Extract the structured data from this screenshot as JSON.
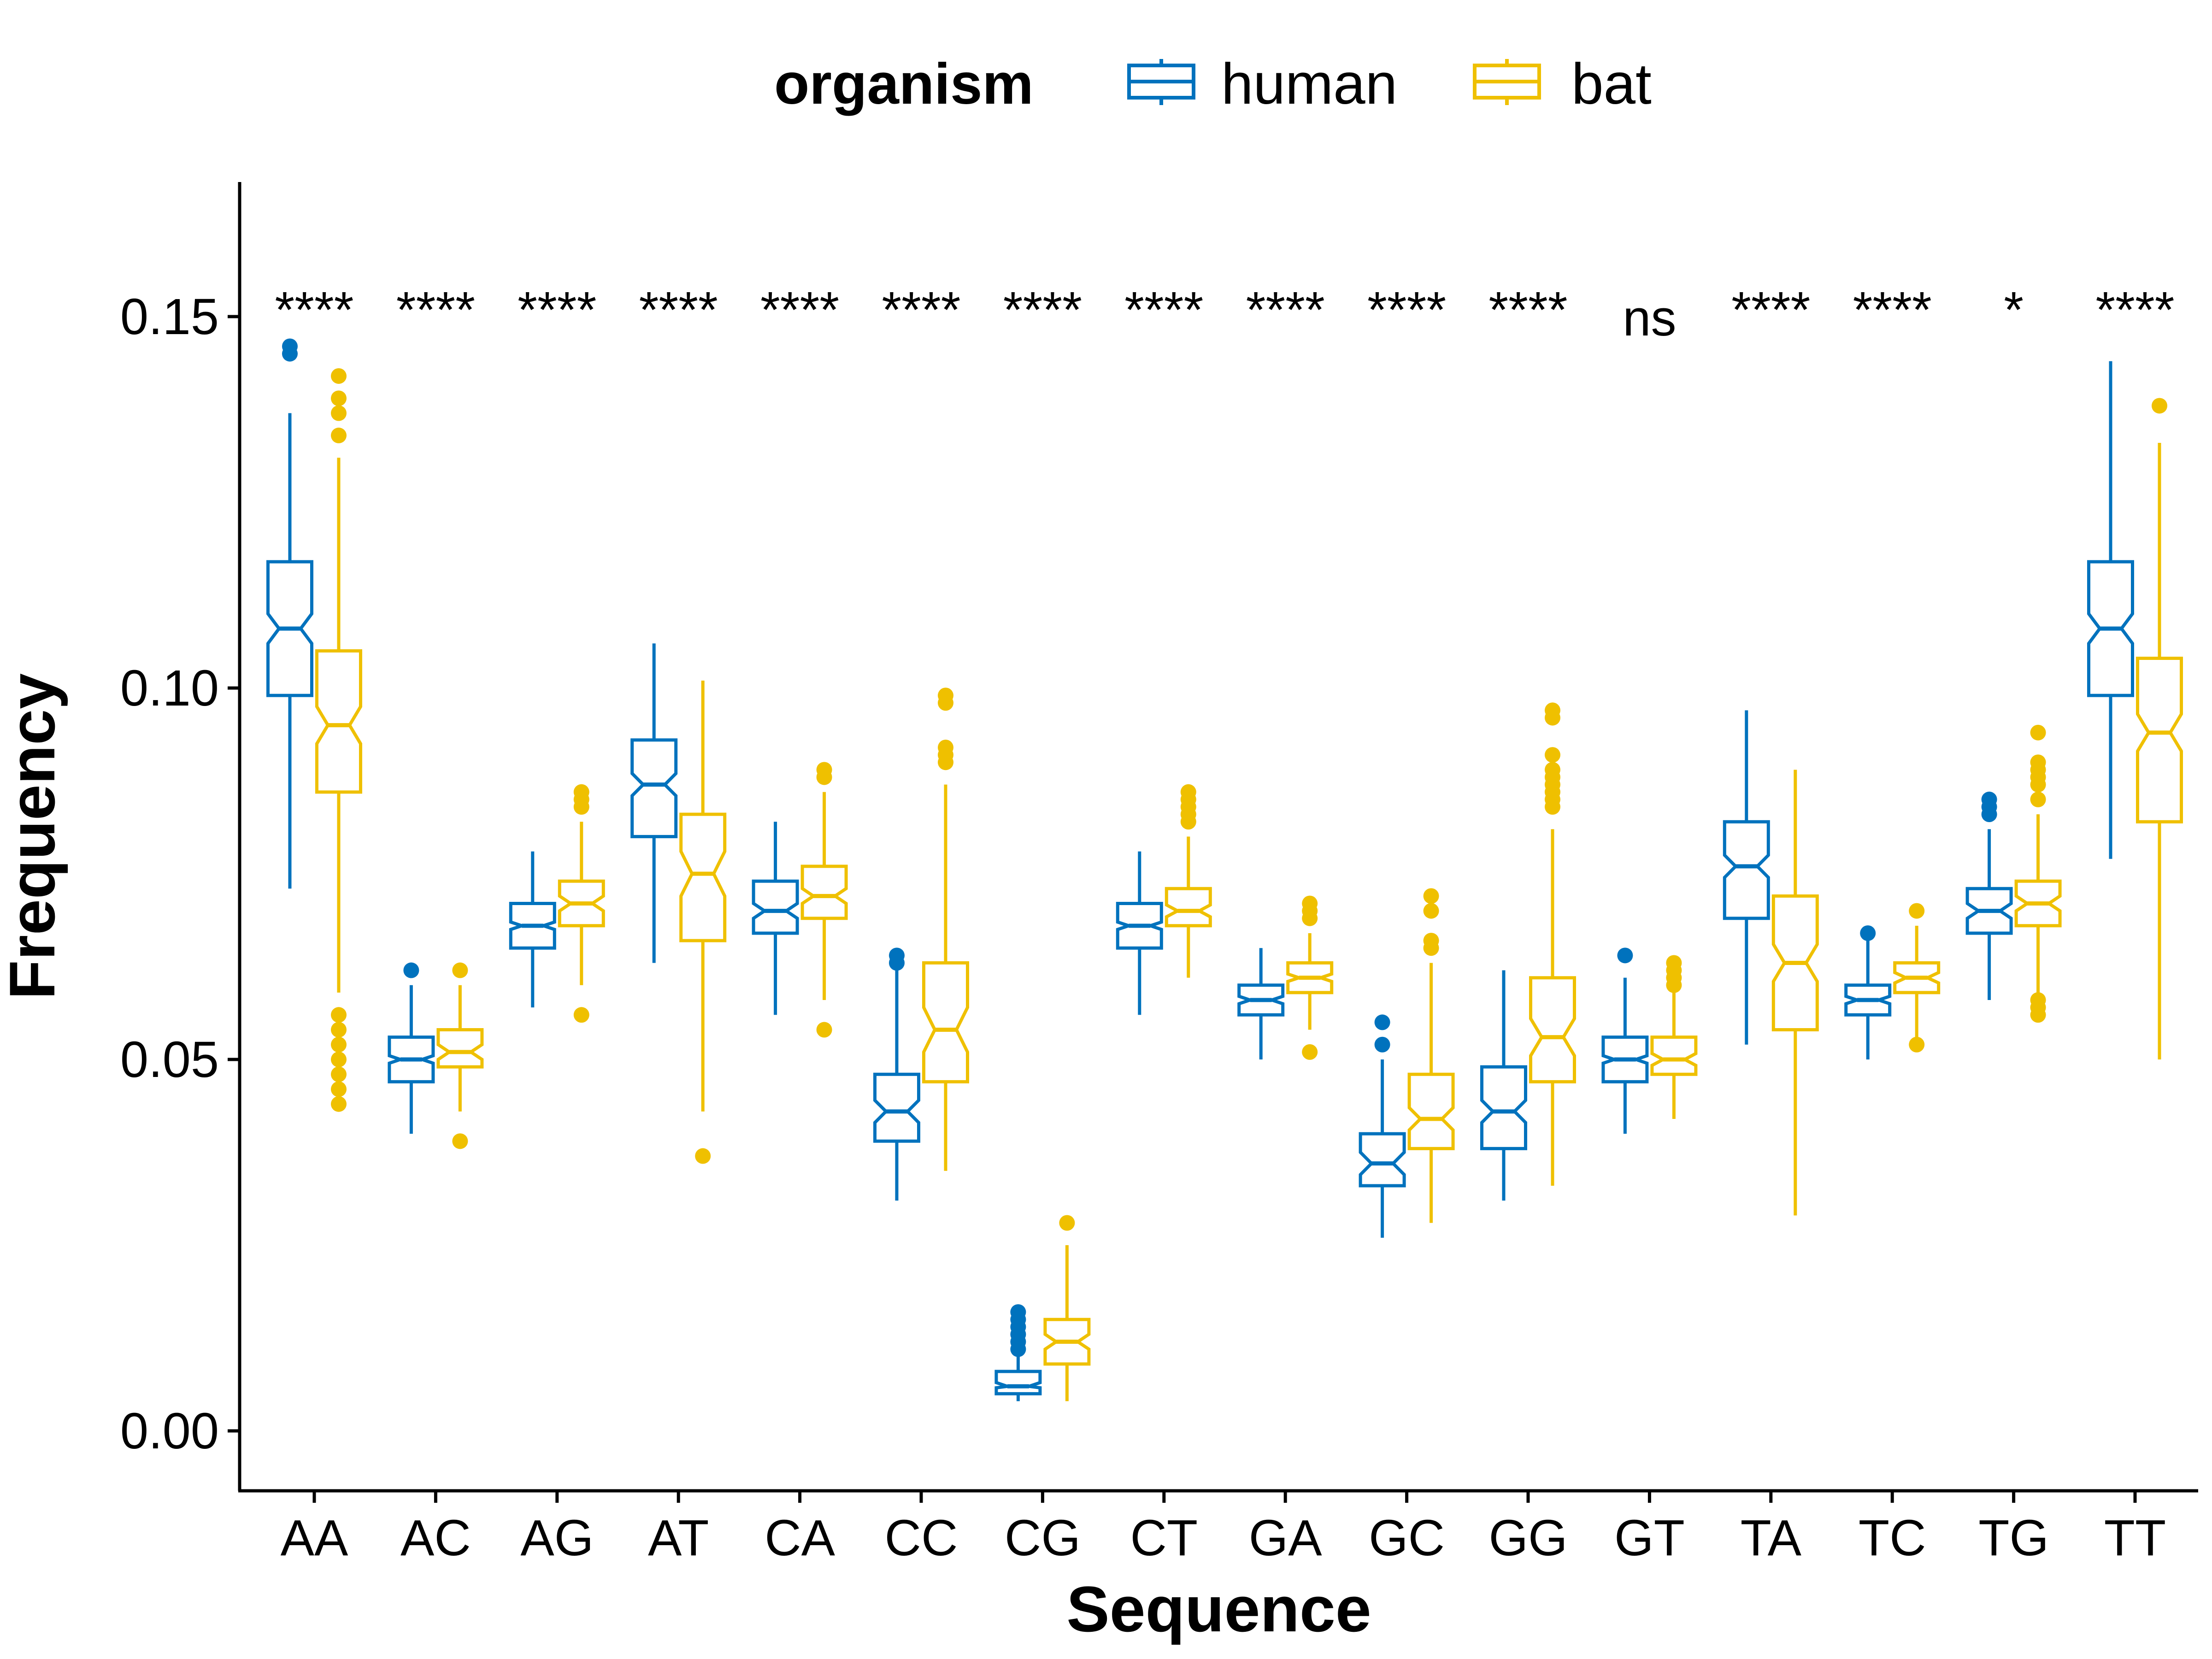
{
  "chart_data": {
    "type": "boxplot",
    "xlabel": "Sequence",
    "ylabel": "Frequency",
    "ylim": [
      -0.006,
      0.168
    ],
    "yticks": [
      0.0,
      0.05,
      0.1,
      0.15
    ],
    "ytick_labels": [
      "0.00",
      "0.05",
      "0.10",
      "0.15"
    ],
    "notched": true,
    "grid": false,
    "legend": {
      "title": "organism",
      "position": "top",
      "entries": [
        "human",
        "bat"
      ]
    },
    "colors": {
      "human": "#0072BD",
      "bat": "#EFC000"
    },
    "categories": [
      "AA",
      "AC",
      "AG",
      "AT",
      "CA",
      "CC",
      "CG",
      "CT",
      "GA",
      "GC",
      "GG",
      "GT",
      "TA",
      "TC",
      "TG",
      "TT"
    ],
    "significance": [
      "****",
      "****",
      "****",
      "****",
      "****",
      "****",
      "****",
      "****",
      "****",
      "****",
      "****",
      "ns",
      "****",
      "****",
      "*",
      "****"
    ],
    "series": [
      {
        "name": "human",
        "boxes": [
          {
            "whisker_low": 0.073,
            "q1": 0.099,
            "median": 0.108,
            "q3": 0.117,
            "whisker_high": 0.137,
            "notch_low": 0.106,
            "notch_high": 0.11,
            "outliers": [
              0.146,
              0.145
            ]
          },
          {
            "whisker_low": 0.04,
            "q1": 0.047,
            "median": 0.05,
            "q3": 0.053,
            "whisker_high": 0.06,
            "notch_low": 0.0495,
            "notch_high": 0.0505,
            "outliers": [
              0.062
            ]
          },
          {
            "whisker_low": 0.057,
            "q1": 0.065,
            "median": 0.068,
            "q3": 0.071,
            "whisker_high": 0.078,
            "notch_low": 0.0675,
            "notch_high": 0.0685,
            "outliers": []
          },
          {
            "whisker_low": 0.063,
            "q1": 0.08,
            "median": 0.087,
            "q3": 0.093,
            "whisker_high": 0.106,
            "notch_low": 0.0855,
            "notch_high": 0.0885,
            "outliers": []
          },
          {
            "whisker_low": 0.056,
            "q1": 0.067,
            "median": 0.07,
            "q3": 0.074,
            "whisker_high": 0.082,
            "notch_low": 0.069,
            "notch_high": 0.071,
            "outliers": []
          },
          {
            "whisker_low": 0.031,
            "q1": 0.039,
            "median": 0.043,
            "q3": 0.048,
            "whisker_high": 0.062,
            "notch_low": 0.0415,
            "notch_high": 0.0445,
            "outliers": [
              0.064,
              0.063
            ]
          },
          {
            "whisker_low": 0.004,
            "q1": 0.005,
            "median": 0.006,
            "q3": 0.008,
            "whisker_high": 0.01,
            "notch_low": 0.0058,
            "notch_high": 0.0065,
            "outliers": [
              0.016,
              0.015,
              0.014,
              0.013,
              0.012,
              0.011
            ]
          },
          {
            "whisker_low": 0.056,
            "q1": 0.065,
            "median": 0.068,
            "q3": 0.071,
            "whisker_high": 0.078,
            "notch_low": 0.0675,
            "notch_high": 0.0685,
            "outliers": []
          },
          {
            "whisker_low": 0.05,
            "q1": 0.056,
            "median": 0.058,
            "q3": 0.06,
            "whisker_high": 0.065,
            "notch_low": 0.0575,
            "notch_high": 0.0585,
            "outliers": []
          },
          {
            "whisker_low": 0.026,
            "q1": 0.033,
            "median": 0.036,
            "q3": 0.04,
            "whisker_high": 0.05,
            "notch_low": 0.0345,
            "notch_high": 0.0375,
            "outliers": [
              0.055,
              0.052
            ]
          },
          {
            "whisker_low": 0.031,
            "q1": 0.038,
            "median": 0.043,
            "q3": 0.049,
            "whisker_high": 0.062,
            "notch_low": 0.0415,
            "notch_high": 0.0445,
            "outliers": []
          },
          {
            "whisker_low": 0.04,
            "q1": 0.047,
            "median": 0.05,
            "q3": 0.053,
            "whisker_high": 0.061,
            "notch_low": 0.0495,
            "notch_high": 0.0505,
            "outliers": [
              0.064
            ]
          },
          {
            "whisker_low": 0.052,
            "q1": 0.069,
            "median": 0.076,
            "q3": 0.082,
            "whisker_high": 0.097,
            "notch_low": 0.0745,
            "notch_high": 0.0775,
            "outliers": []
          },
          {
            "whisker_low": 0.05,
            "q1": 0.056,
            "median": 0.058,
            "q3": 0.06,
            "whisker_high": 0.066,
            "notch_low": 0.0575,
            "notch_high": 0.0585,
            "outliers": [
              0.067
            ]
          },
          {
            "whisker_low": 0.058,
            "q1": 0.067,
            "median": 0.07,
            "q3": 0.073,
            "whisker_high": 0.081,
            "notch_low": 0.069,
            "notch_high": 0.071,
            "outliers": [
              0.085,
              0.084,
              0.083
            ]
          },
          {
            "whisker_low": 0.077,
            "q1": 0.099,
            "median": 0.108,
            "q3": 0.117,
            "whisker_high": 0.144,
            "notch_low": 0.106,
            "notch_high": 0.11,
            "outliers": []
          }
        ]
      },
      {
        "name": "bat",
        "boxes": [
          {
            "whisker_low": 0.059,
            "q1": 0.086,
            "median": 0.095,
            "q3": 0.105,
            "whisker_high": 0.131,
            "notch_low": 0.0925,
            "notch_high": 0.0975,
            "outliers": [
              0.142,
              0.139,
              0.137,
              0.134,
              0.056,
              0.054,
              0.052,
              0.05,
              0.048,
              0.046,
              0.044
            ]
          },
          {
            "whisker_low": 0.043,
            "q1": 0.049,
            "median": 0.051,
            "q3": 0.054,
            "whisker_high": 0.06,
            "notch_low": 0.05,
            "notch_high": 0.052,
            "outliers": [
              0.062,
              0.039
            ]
          },
          {
            "whisker_low": 0.06,
            "q1": 0.068,
            "median": 0.071,
            "q3": 0.074,
            "whisker_high": 0.082,
            "notch_low": 0.07,
            "notch_high": 0.072,
            "outliers": [
              0.086,
              0.085,
              0.084,
              0.056
            ]
          },
          {
            "whisker_low": 0.043,
            "q1": 0.066,
            "median": 0.075,
            "q3": 0.083,
            "whisker_high": 0.101,
            "notch_low": 0.072,
            "notch_high": 0.078,
            "outliers": [
              0.037
            ]
          },
          {
            "whisker_low": 0.058,
            "q1": 0.069,
            "median": 0.072,
            "q3": 0.076,
            "whisker_high": 0.086,
            "notch_low": 0.071,
            "notch_high": 0.073,
            "outliers": [
              0.089,
              0.088,
              0.054
            ]
          },
          {
            "whisker_low": 0.035,
            "q1": 0.047,
            "median": 0.054,
            "q3": 0.063,
            "whisker_high": 0.087,
            "notch_low": 0.051,
            "notch_high": 0.057,
            "outliers": [
              0.099,
              0.098,
              0.092,
              0.091,
              0.09
            ]
          },
          {
            "whisker_low": 0.004,
            "q1": 0.009,
            "median": 0.012,
            "q3": 0.015,
            "whisker_high": 0.025,
            "notch_low": 0.011,
            "notch_high": 0.013,
            "outliers": [
              0.028
            ]
          },
          {
            "whisker_low": 0.061,
            "q1": 0.068,
            "median": 0.07,
            "q3": 0.073,
            "whisker_high": 0.08,
            "notch_low": 0.0692,
            "notch_high": 0.0708,
            "outliers": [
              0.086,
              0.085,
              0.084,
              0.083,
              0.082
            ]
          },
          {
            "whisker_low": 0.054,
            "q1": 0.059,
            "median": 0.061,
            "q3": 0.063,
            "whisker_high": 0.067,
            "notch_low": 0.0605,
            "notch_high": 0.0615,
            "outliers": [
              0.071,
              0.07,
              0.069,
              0.051
            ]
          },
          {
            "whisker_low": 0.028,
            "q1": 0.038,
            "median": 0.042,
            "q3": 0.048,
            "whisker_high": 0.063,
            "notch_low": 0.0405,
            "notch_high": 0.0435,
            "outliers": [
              0.072,
              0.07,
              0.066,
              0.065
            ]
          },
          {
            "whisker_low": 0.033,
            "q1": 0.047,
            "median": 0.053,
            "q3": 0.061,
            "whisker_high": 0.081,
            "notch_low": 0.0505,
            "notch_high": 0.0555,
            "outliers": [
              0.097,
              0.096,
              0.091,
              0.089,
              0.088,
              0.087,
              0.086,
              0.085,
              0.084
            ]
          },
          {
            "whisker_low": 0.042,
            "q1": 0.048,
            "median": 0.05,
            "q3": 0.053,
            "whisker_high": 0.059,
            "notch_low": 0.0492,
            "notch_high": 0.0508,
            "outliers": [
              0.063,
              0.062,
              0.061,
              0.06
            ]
          },
          {
            "whisker_low": 0.029,
            "q1": 0.054,
            "median": 0.063,
            "q3": 0.072,
            "whisker_high": 0.089,
            "notch_low": 0.0605,
            "notch_high": 0.0655,
            "outliers": []
          },
          {
            "whisker_low": 0.053,
            "q1": 0.059,
            "median": 0.061,
            "q3": 0.063,
            "whisker_high": 0.068,
            "notch_low": 0.0603,
            "notch_high": 0.0617,
            "outliers": [
              0.07,
              0.052
            ]
          },
          {
            "whisker_low": 0.059,
            "q1": 0.068,
            "median": 0.071,
            "q3": 0.074,
            "whisker_high": 0.083,
            "notch_low": 0.07,
            "notch_high": 0.072,
            "outliers": [
              0.094,
              0.09,
              0.089,
              0.088,
              0.087,
              0.085,
              0.058,
              0.057,
              0.056
            ]
          },
          {
            "whisker_low": 0.05,
            "q1": 0.082,
            "median": 0.094,
            "q3": 0.104,
            "whisker_high": 0.133,
            "notch_low": 0.0915,
            "notch_high": 0.0965,
            "outliers": [
              0.138
            ]
          }
        ]
      }
    ]
  }
}
